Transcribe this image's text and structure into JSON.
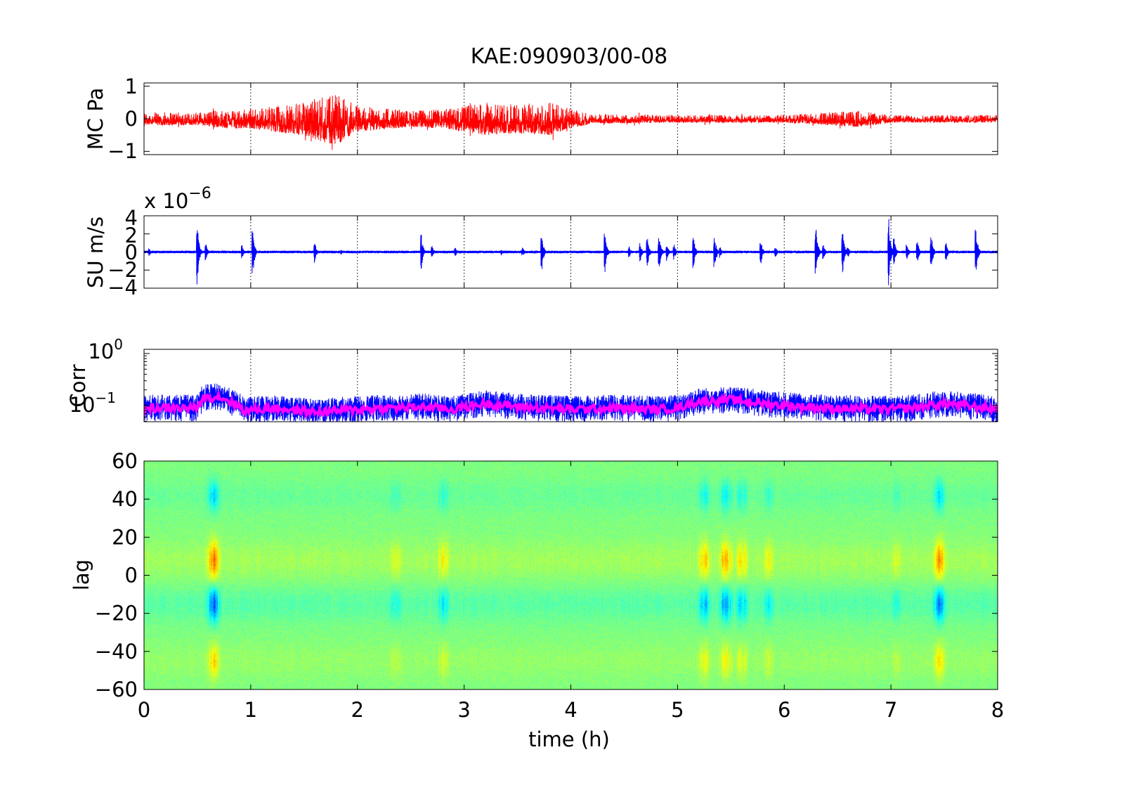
{
  "figure": {
    "title": "KAE:090903/00-08",
    "xlabel": "time (h)"
  },
  "chart_data": [
    {
      "id": "mc",
      "type": "line",
      "ylabel": "MC Pa",
      "xlim": [
        0,
        8
      ],
      "ylim": [
        -1.1,
        1.1
      ],
      "yticks": [
        "1",
        "0",
        "−1"
      ],
      "grid": "x",
      "series": [
        {
          "color": "#ff0000",
          "envelope_t": [
            0,
            0.5,
            0.8,
            1.0,
            1.3,
            1.5,
            1.7,
            1.8,
            1.9,
            2.0,
            2.5,
            2.8,
            3.0,
            3.2,
            3.5,
            3.8,
            4.0,
            4.2,
            5.0,
            6.0,
            6.7,
            7.0,
            8.0
          ],
          "envelope_a": [
            0.2,
            0.2,
            0.3,
            0.3,
            0.45,
            0.5,
            0.75,
            0.8,
            0.6,
            0.4,
            0.25,
            0.3,
            0.4,
            0.5,
            0.45,
            0.5,
            0.3,
            0.15,
            0.12,
            0.12,
            0.25,
            0.12,
            0.12
          ]
        }
      ]
    },
    {
      "id": "su",
      "type": "line",
      "ylabel": "SU m/s",
      "multiplier": "x 10",
      "exponent": "−6",
      "xlim": [
        0,
        8
      ],
      "ylim": [
        -4,
        4
      ],
      "yticks": [
        "4",
        "2",
        "0",
        "−2",
        "−4"
      ],
      "grid": "x",
      "series": [
        {
          "color": "#0000ff",
          "bursts_t": [
            0.05,
            0.5,
            0.58,
            0.92,
            1.02,
            1.6,
            1.85,
            2.6,
            2.7,
            2.92,
            3.35,
            3.55,
            3.73,
            4.32,
            4.55,
            4.65,
            4.72,
            4.83,
            4.9,
            4.97,
            5.15,
            5.35,
            5.4,
            5.78,
            5.92,
            6.3,
            6.37,
            6.55,
            6.6,
            6.98,
            7.03,
            7.15,
            7.25,
            7.38,
            7.52,
            7.8
          ],
          "bursts_a": [
            0.5,
            3.6,
            1.0,
            0.8,
            2.8,
            1.2,
            0.3,
            1.9,
            0.7,
            0.5,
            0.4,
            0.5,
            2.0,
            2.4,
            0.6,
            1.2,
            1.6,
            2.0,
            1.0,
            0.9,
            1.8,
            1.8,
            0.7,
            1.6,
            0.6,
            2.7,
            0.8,
            2.3,
            0.6,
            3.9,
            1.6,
            1.0,
            1.2,
            1.9,
            1.0,
            2.5
          ]
        }
      ]
    },
    {
      "id": "corr",
      "type": "line",
      "ylabel": "Corr",
      "yscale": "log",
      "xlim": [
        0,
        8
      ],
      "ytick_labels": [
        {
          "base": "10",
          "exp": "0"
        },
        {
          "base": "10",
          "exp": "−1"
        }
      ],
      "grid": "x",
      "series": [
        {
          "color": "#0000ff",
          "level_t": [
            0,
            0.5,
            0.55,
            0.7,
            0.95,
            1.2,
            1.6,
            2.0,
            2.6,
            2.9,
            3.2,
            3.5,
            4.0,
            4.4,
            4.8,
            5.0,
            5.2,
            5.5,
            5.8,
            6.0,
            6.4,
            6.9,
            7.2,
            7.5,
            8.0
          ],
          "level": [
            0.09,
            0.09,
            0.14,
            0.15,
            0.08,
            0.09,
            0.075,
            0.085,
            0.095,
            0.085,
            0.11,
            0.095,
            0.085,
            0.09,
            0.085,
            0.09,
            0.12,
            0.13,
            0.11,
            0.1,
            0.09,
            0.085,
            0.09,
            0.11,
            0.085
          ]
        },
        {
          "color": "#ff00ff",
          "level_t": [
            0,
            0.5,
            0.55,
            0.7,
            0.95,
            1.2,
            1.6,
            2.0,
            2.6,
            2.9,
            3.2,
            3.5,
            4.0,
            4.4,
            4.8,
            5.0,
            5.2,
            5.5,
            5.8,
            6.0,
            6.4,
            6.9,
            7.2,
            7.5,
            8.0
          ],
          "level": [
            0.09,
            0.09,
            0.14,
            0.15,
            0.08,
            0.09,
            0.075,
            0.085,
            0.095,
            0.085,
            0.11,
            0.095,
            0.085,
            0.09,
            0.085,
            0.09,
            0.12,
            0.13,
            0.11,
            0.1,
            0.09,
            0.085,
            0.09,
            0.11,
            0.085
          ]
        }
      ]
    },
    {
      "id": "lag",
      "type": "heatmap",
      "ylabel": "lag",
      "xlim": [
        0,
        8
      ],
      "ylim": [
        -60,
        60
      ],
      "xticks": [
        "0",
        "1",
        "2",
        "3",
        "4",
        "5",
        "6",
        "7",
        "8"
      ],
      "yticks": [
        "60",
        "40",
        "20",
        "0",
        "−20",
        "−40",
        "−60"
      ],
      "colormap": "jet",
      "hot_t": [
        0.65,
        2.35,
        2.8,
        5.25,
        5.45,
        5.6,
        5.85,
        7.05,
        7.45
      ],
      "hot_w": [
        1.0,
        0.45,
        0.55,
        0.7,
        0.8,
        0.65,
        0.5,
        0.35,
        0.9
      ]
    }
  ]
}
